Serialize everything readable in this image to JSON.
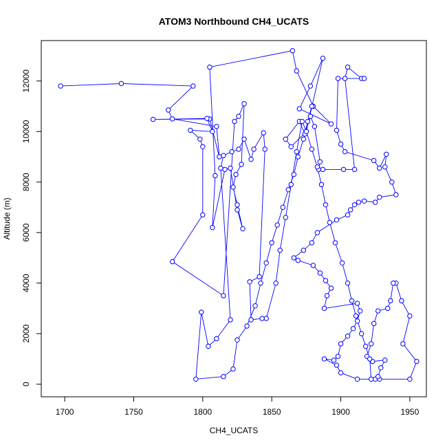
{
  "chart_data": {
    "type": "line",
    "title": "ATOM3 Northbound CH4_UCATS",
    "xlabel": "CH4_UCATS",
    "ylabel": "Altitude (m)",
    "xlim": [
      1683,
      1962
    ],
    "ylim": [
      -500,
      13600
    ],
    "x_ticks": [
      1700,
      1750,
      1800,
      1850,
      1900,
      1950
    ],
    "y_ticks": [
      0,
      2000,
      4000,
      6000,
      8000,
      10000,
      12000
    ],
    "grid": false,
    "legend": "none",
    "colors": {
      "series": "#0000ff",
      "axes": "#000000",
      "background": "#ffffff"
    },
    "series": [
      {
        "markers": "open-circle",
        "points": [
          [
            1697,
            11800
          ],
          [
            1741,
            11900
          ],
          [
            1793,
            11800
          ],
          [
            1775,
            10850
          ],
          [
            1778,
            10500
          ],
          [
            1810,
            10200
          ],
          [
            1812,
            9000
          ],
          [
            1805,
            10500
          ],
          [
            1764,
            10480
          ],
          [
            1803,
            10520
          ],
          [
            1807,
            10000
          ],
          [
            1791,
            10050
          ],
          [
            1798,
            9700
          ],
          [
            1800,
            9400
          ],
          [
            1800,
            6700
          ],
          [
            1778,
            4850
          ],
          [
            1815,
            3500
          ],
          [
            1823,
            10400
          ],
          [
            1826,
            10600
          ],
          [
            1830,
            11100
          ],
          [
            1828,
            8700
          ],
          [
            1824,
            8300
          ],
          [
            1822,
            7800
          ],
          [
            1825,
            7100
          ],
          [
            1829,
            6150
          ],
          [
            1825,
            6900
          ],
          [
            1820,
            8550
          ],
          [
            1816,
            8500
          ],
          [
            1807,
            6200
          ],
          [
            1809,
            8250
          ],
          [
            1805,
            12550
          ],
          [
            1865,
            13200
          ],
          [
            1868,
            12400
          ],
          [
            1880,
            11000
          ],
          [
            1893,
            10300
          ],
          [
            1870,
            10900
          ],
          [
            1878,
            11800
          ],
          [
            1887,
            12900
          ],
          [
            1875,
            10000
          ],
          [
            1864,
            9400
          ],
          [
            1860,
            9700
          ],
          [
            1870,
            10400
          ],
          [
            1874,
            9900
          ],
          [
            1878,
            10600
          ],
          [
            1881,
            10200
          ],
          [
            1885,
            8800
          ],
          [
            1884,
            8500
          ],
          [
            1887,
            8500
          ],
          [
            1902,
            8500
          ],
          [
            1910,
            8500
          ],
          [
            1903,
            12100
          ],
          [
            1905,
            12550
          ],
          [
            1915,
            12100
          ],
          [
            1917,
            12100
          ],
          [
            1898,
            12100
          ],
          [
            1897,
            10050
          ],
          [
            1900,
            9500
          ],
          [
            1903,
            9200
          ],
          [
            1924,
            8850
          ],
          [
            1928,
            8550
          ],
          [
            1933,
            9100
          ],
          [
            1932,
            8600
          ],
          [
            1937,
            8000
          ],
          [
            1940,
            7500
          ],
          [
            1928,
            7400
          ],
          [
            1925,
            7200
          ],
          [
            1917,
            7250
          ],
          [
            1913,
            7200
          ],
          [
            1910,
            7100
          ],
          [
            1907,
            6900
          ],
          [
            1905,
            6700
          ],
          [
            1897,
            6500
          ],
          [
            1883,
            6000
          ],
          [
            1879,
            5600
          ],
          [
            1873,
            5300
          ],
          [
            1866,
            5000
          ],
          [
            1869,
            4900
          ],
          [
            1880,
            4700
          ],
          [
            1885,
            4400
          ],
          [
            1889,
            4100
          ],
          [
            1893,
            3800
          ],
          [
            1890,
            3500
          ],
          [
            1888,
            3000
          ],
          [
            1912,
            3200
          ],
          [
            1914,
            2900
          ],
          [
            1912,
            2500
          ],
          [
            1909,
            2200
          ],
          [
            1905,
            1900
          ],
          [
            1900,
            1600
          ],
          [
            1898,
            1100
          ],
          [
            1895,
            950
          ],
          [
            1888,
            1000
          ],
          [
            1897,
            750
          ],
          [
            1900,
            450
          ],
          [
            1912,
            200
          ],
          [
            1925,
            200
          ],
          [
            1928,
            200
          ],
          [
            1950,
            200
          ],
          [
            1955,
            900
          ],
          [
            1945,
            1600
          ],
          [
            1950,
            2700
          ],
          [
            1944,
            3300
          ],
          [
            1940,
            4000
          ],
          [
            1938,
            4000
          ],
          [
            1936,
            3300
          ],
          [
            1934,
            3000
          ],
          [
            1927,
            2900
          ],
          [
            1924,
            2400
          ],
          [
            1922,
            1600
          ],
          [
            1919,
            1100
          ],
          [
            1923,
            900
          ],
          [
            1932,
            950
          ],
          [
            1929,
            650
          ],
          [
            1927,
            300
          ],
          [
            1922,
            200
          ],
          [
            1921,
            1000
          ],
          [
            1918,
            1500
          ],
          [
            1915,
            2000
          ],
          [
            1911,
            2700
          ],
          [
            1908,
            3300
          ],
          [
            1905,
            4000
          ],
          [
            1901,
            4800
          ],
          [
            1896,
            5600
          ],
          [
            1892,
            6400
          ],
          [
            1889,
            7100
          ],
          [
            1886,
            7900
          ],
          [
            1883,
            8600
          ],
          [
            1879,
            9300
          ],
          [
            1875,
            10000
          ],
          [
            1872,
            10400
          ],
          [
            1868,
            9200
          ],
          [
            1864,
            7900
          ],
          [
            1860,
            6600
          ],
          [
            1856,
            5300
          ],
          [
            1853,
            4000
          ],
          [
            1846,
            2600
          ],
          [
            1843,
            2600
          ],
          [
            1835,
            2550
          ],
          [
            1834,
            4050
          ],
          [
            1841,
            4250
          ],
          [
            1845,
            9300
          ],
          [
            1844,
            9950
          ],
          [
            1837,
            9300
          ],
          [
            1835,
            8900
          ],
          [
            1830,
            9700
          ],
          [
            1826,
            9300
          ],
          [
            1821,
            9200
          ],
          [
            1815,
            9050
          ],
          [
            1813,
            8550
          ],
          [
            1820,
            2550
          ],
          [
            1810,
            1800
          ],
          [
            1804,
            1500
          ],
          [
            1799,
            2850
          ],
          [
            1795,
            200
          ],
          [
            1815,
            300
          ],
          [
            1822,
            600
          ],
          [
            1825,
            1750
          ],
          [
            1832,
            2300
          ],
          [
            1838,
            3100
          ],
          [
            1842,
            4000
          ],
          [
            1846,
            4800
          ],
          [
            1850,
            5600
          ],
          [
            1854,
            6300
          ],
          [
            1858,
            7000
          ],
          [
            1862,
            7700
          ],
          [
            1866,
            8300
          ],
          [
            1869,
            9000
          ],
          [
            1873,
            9700
          ],
          [
            1876,
            10400
          ],
          [
            1879,
            11000
          ]
        ]
      }
    ]
  }
}
